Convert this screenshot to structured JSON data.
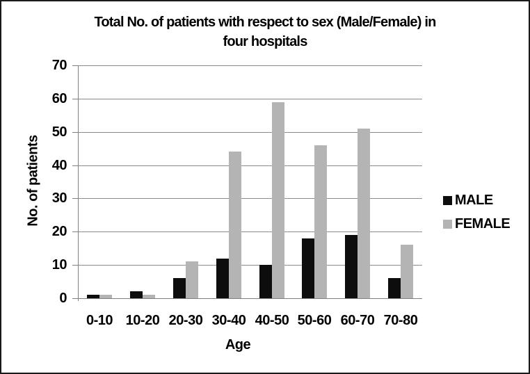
{
  "chart_data": {
    "type": "bar",
    "title": "Total No. of patients with respect to sex (Male/Female) in four hospitals",
    "title_line1": "Total No. of patients with respect to sex (Male/Female) in",
    "title_line2": "four hospitals",
    "xlabel": "Age",
    "ylabel": "No. of patients",
    "categories": [
      "0-10",
      "10-20",
      "20-30",
      "30-40",
      "40-50",
      "50-60",
      "60-70",
      "70-80"
    ],
    "series": [
      {
        "name": "MALE",
        "color": "#0d0d0d",
        "values": [
          1,
          2,
          6,
          12,
          10,
          18,
          19,
          6
        ]
      },
      {
        "name": "FEMALE",
        "color": "#b4b4b4",
        "values": [
          1,
          1,
          11,
          44,
          59,
          46,
          51,
          16
        ]
      }
    ],
    "ylim": [
      0,
      70
    ],
    "yticks": [
      0,
      10,
      20,
      30,
      40,
      50,
      60,
      70
    ],
    "grid": "horizontal",
    "legend_position": "right",
    "grid_color": "#8a8a8a",
    "axis_color": "#808080",
    "text_color": "#000000",
    "background_color": "#ffffff"
  }
}
